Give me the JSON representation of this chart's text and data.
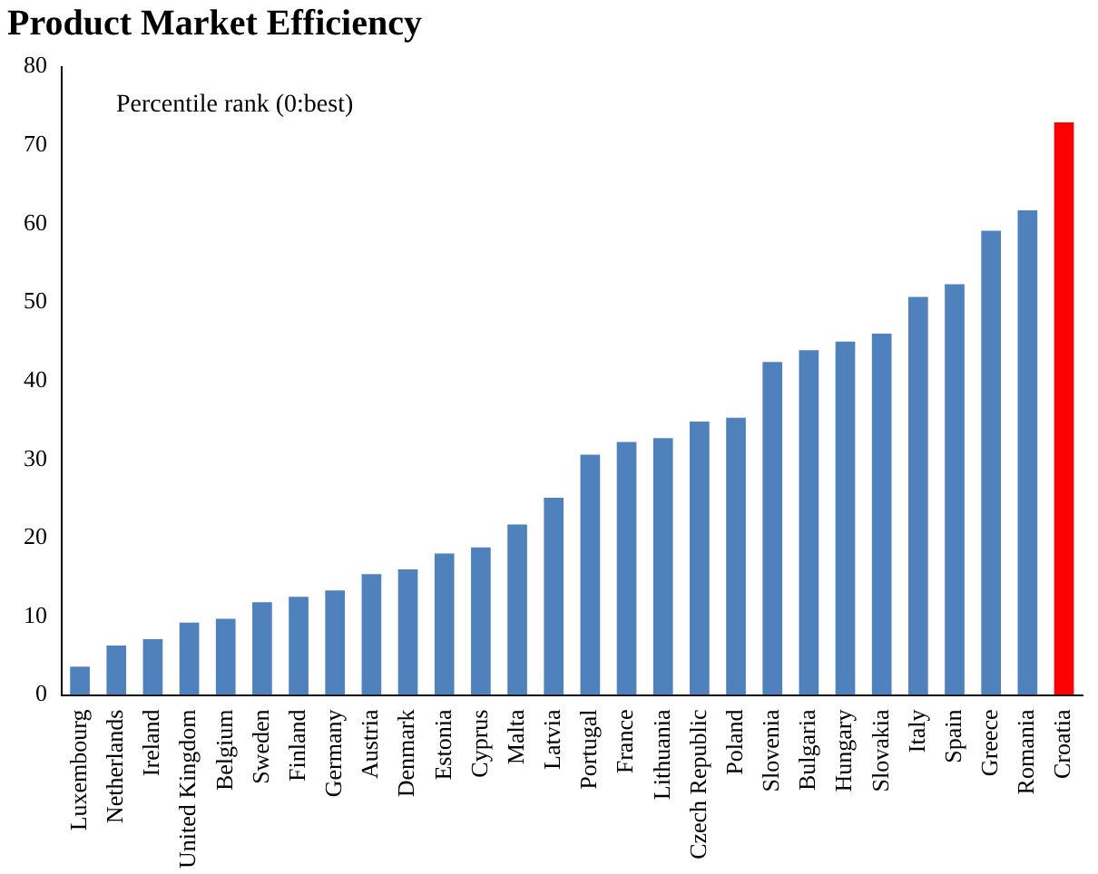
{
  "chart_data": {
    "type": "bar",
    "title": "Product Market Efficiency",
    "categories": [
      "Luxembourg",
      "Netherlands",
      "Ireland",
      "United Kingdom",
      "Belgium",
      "Sweden",
      "Finland",
      "Germany",
      "Austria",
      "Denmark",
      "Estonia",
      "Cyprus",
      "Malta",
      "Latvia",
      "Portugal",
      "France",
      "Lithuania",
      "Czech Republic",
      "Poland",
      "Slovenia",
      "Bulgaria",
      "Hungary",
      "Slovakia",
      "Italy",
      "Spain",
      "Greece",
      "Romania",
      "Croatia"
    ],
    "values": [
      3.6,
      6.3,
      7.1,
      9.2,
      9.7,
      11.8,
      12.5,
      13.3,
      15.4,
      16,
      18,
      18.8,
      21.7,
      25.1,
      30.6,
      32.2,
      32.7,
      34.8,
      35.3,
      42.4,
      43.9,
      45,
      46,
      50.7,
      52.3,
      59.1,
      61.7,
      72.9
    ],
    "colors": [
      "#4f81bd",
      "#4f81bd",
      "#4f81bd",
      "#4f81bd",
      "#4f81bd",
      "#4f81bd",
      "#4f81bd",
      "#4f81bd",
      "#4f81bd",
      "#4f81bd",
      "#4f81bd",
      "#4f81bd",
      "#4f81bd",
      "#4f81bd",
      "#4f81bd",
      "#4f81bd",
      "#4f81bd",
      "#4f81bd",
      "#4f81bd",
      "#4f81bd",
      "#4f81bd",
      "#4f81bd",
      "#4f81bd",
      "#4f81bd",
      "#4f81bd",
      "#4f81bd",
      "#4f81bd",
      "#ff0000"
    ],
    "ylim": [
      0,
      80
    ],
    "yticks": [
      0,
      10,
      20,
      30,
      40,
      50,
      60,
      70,
      80
    ],
    "grid": false,
    "legend": false,
    "annotations": [
      "Percentile rank (0:best)"
    ]
  }
}
